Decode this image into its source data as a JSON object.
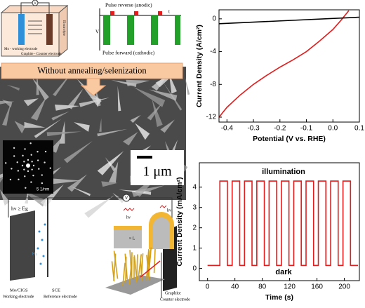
{
  "chart_data": [
    {
      "type": "line",
      "xlabel": "Potential (V vs. RHE)",
      "ylabel": "Current Density (A/cm²)",
      "xlim": [
        -0.43,
        0.1
      ],
      "ylim": [
        -12.6,
        1.1
      ],
      "xticks": [
        -0.4,
        -0.3,
        -0.2,
        -0.1,
        {
          "value": 0,
          "label": "0.0"
        },
        0.1
      ],
      "yticks": [
        -12,
        -8,
        -4,
        0
      ],
      "grid": false,
      "series": [
        {
          "color": "#e11d1d",
          "x": [
            -0.43,
            -0.4,
            -0.35,
            -0.3,
            -0.25,
            -0.2,
            -0.15,
            -0.1,
            -0.05,
            0,
            0.03,
            0.05,
            0.06
          ],
          "values": [
            -12,
            -10.8,
            -9.3,
            -8,
            -6.9,
            -5.9,
            -5,
            -4,
            -2.7,
            -1.3,
            -0.2,
            0.6,
            1
          ]
        },
        {
          "color": "#000000",
          "x": [
            -0.43,
            0.1
          ],
          "values": [
            -0.6,
            0.2
          ]
        }
      ]
    },
    {
      "type": "line",
      "xlabel": "Time (s)",
      "ylabel": "Current Density (mA/cm²)",
      "xlim": [
        -12,
        222
      ],
      "ylim": [
        -0.6,
        5.2
      ],
      "xticks": [
        0,
        40,
        80,
        120,
        160,
        200
      ],
      "yticks": [
        0,
        1,
        2,
        3,
        4
      ],
      "grid": false,
      "annotations": [
        "illumination",
        "dark"
      ],
      "series": [
        {
          "color": "#e11d1d",
          "x": [
            0,
            18,
            18,
            29,
            29,
            36,
            36,
            47,
            47,
            54,
            54,
            65,
            65,
            72,
            72,
            83,
            83,
            90,
            90,
            101,
            101,
            108,
            108,
            119,
            119,
            126,
            126,
            137,
            137,
            144,
            144,
            155,
            155,
            162,
            162,
            173,
            173,
            180,
            180,
            191,
            191,
            198,
            198,
            209,
            209,
            220
          ],
          "values": [
            0.15,
            0.15,
            4.3,
            4.3,
            0.15,
            0.15,
            4.3,
            4.3,
            0.15,
            0.15,
            4.3,
            4.3,
            0.15,
            0.15,
            4.3,
            4.3,
            0.15,
            0.15,
            4.3,
            4.3,
            0.15,
            0.15,
            4.3,
            4.3,
            0.15,
            0.15,
            4.3,
            4.3,
            0.15,
            0.15,
            4.3,
            4.3,
            0.15,
            0.15,
            4.3,
            4.3,
            0.15,
            0.15,
            4.3,
            4.3,
            0.15,
            0.15,
            4.3,
            4.3,
            0.15,
            0.15
          ]
        }
      ]
    }
  ],
  "figure": {
    "cell": {
      "meter": "V",
      "working": "Mo - working electrode",
      "counter": "Graphite - Counter electrode",
      "electrolyte": "Electrolyte"
    },
    "pulse": {
      "reverse": "Pulse reverse (anodic)",
      "time": "t",
      "voltage": "V",
      "forward": "Pulse forward (cathodic)"
    },
    "banner": "Without annealing/selenization",
    "sem": {
      "scale": "1 μm",
      "diffraction": "5 1/nm"
    },
    "pec": {
      "meter": "V",
      "light": "hv ≥ Eg",
      "gas": "H₂",
      "working": "Mo/CIGS",
      "working_sub": "Working electrode",
      "reference": "SCE",
      "reference_sub": "Reference electrode",
      "counter": "Graphite",
      "counter_sub": "Counter electrode"
    },
    "model": {
      "light1": "hv",
      "length": "≈ L",
      "light2": "hv"
    }
  }
}
